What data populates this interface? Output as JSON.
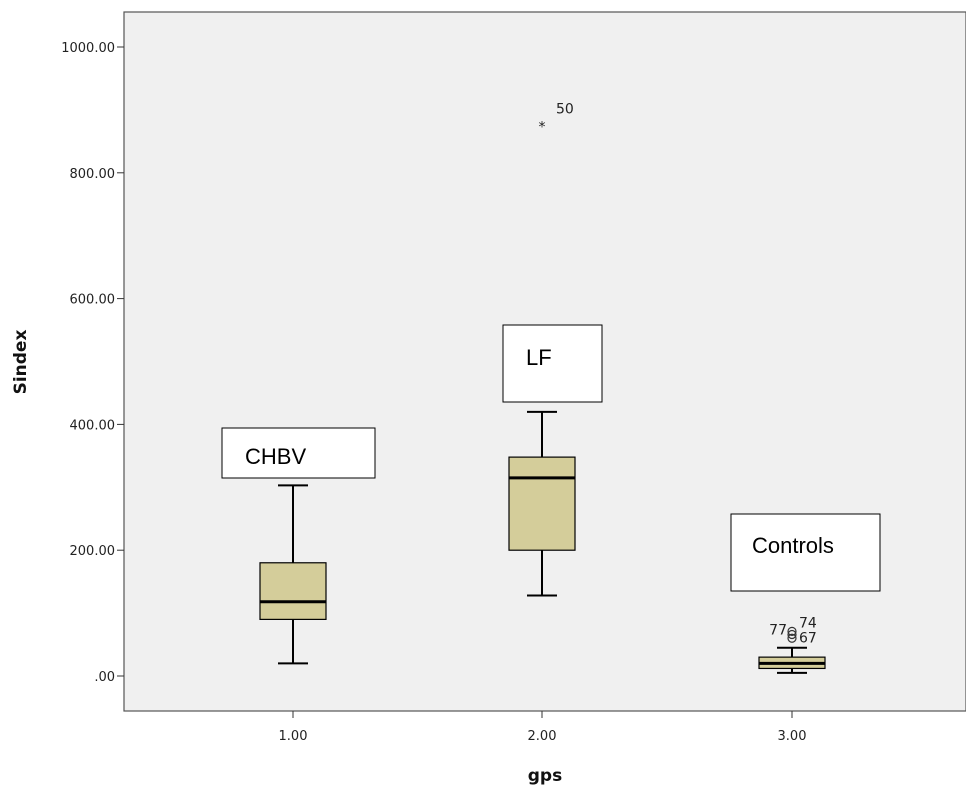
{
  "chart_data": {
    "type": "box",
    "xlabel": "gps",
    "ylabel": "Sindex",
    "ylim": [
      -50,
      1060
    ],
    "yticks": [
      {
        "value": 0,
        "label": ".00"
      },
      {
        "value": 200,
        "label": "200.00"
      },
      {
        "value": 400,
        "label": "400.00"
      },
      {
        "value": 600,
        "label": "600.00"
      },
      {
        "value": 800,
        "label": "800.00"
      },
      {
        "value": 1000,
        "label": "1000.00"
      }
    ],
    "categories": [
      "1.00",
      "2.00",
      "3.00"
    ],
    "boxes": [
      {
        "category": "1.00",
        "whisker_low": 20,
        "q1": 90,
        "median": 118,
        "q3": 180,
        "whisker_high": 303,
        "outliers": []
      },
      {
        "category": "2.00",
        "whisker_low": 128,
        "q1": 200,
        "median": 315,
        "q3": 348,
        "whisker_high": 420,
        "outliers": [
          {
            "value": 880,
            "label": "50",
            "marker": "extreme"
          }
        ]
      },
      {
        "category": "3.00",
        "whisker_low": 5,
        "q1": 12,
        "median": 20,
        "q3": 30,
        "whisker_high": 45,
        "outliers": [
          {
            "value": 60,
            "label": "67",
            "marker": "outlier"
          },
          {
            "value": 66,
            "label": "77",
            "marker": "outlier"
          },
          {
            "value": 71,
            "label": "74",
            "marker": "outlier"
          }
        ]
      }
    ],
    "annotations": [
      "CHBV",
      "LF",
      "Controls"
    ],
    "colors": {
      "box_fill": "#d4cd9a",
      "plot_bg": "#f0f0f0",
      "line": "#000000"
    },
    "grid": false
  }
}
